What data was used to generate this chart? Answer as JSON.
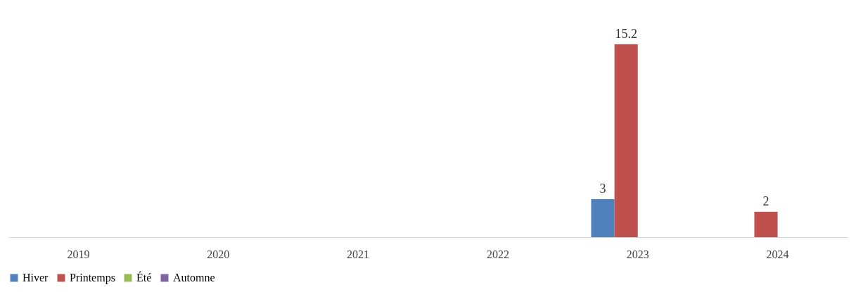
{
  "chart_data": {
    "type": "bar",
    "categories": [
      "2019",
      "2020",
      "2021",
      "2022",
      "2023",
      "2024"
    ],
    "series": [
      {
        "name": "Hiver",
        "color": "#4f81bd",
        "values": [
          null,
          null,
          null,
          null,
          3,
          null
        ]
      },
      {
        "name": "Printemps",
        "color": "#c0504d",
        "values": [
          null,
          null,
          null,
          null,
          15.2,
          2
        ]
      },
      {
        "name": "Été",
        "color": "#9bbb59",
        "values": [
          null,
          null,
          null,
          null,
          null,
          null
        ]
      },
      {
        "name": "Automne",
        "color": "#8064a2",
        "values": [
          null,
          null,
          null,
          null,
          null,
          null
        ]
      }
    ],
    "data_labels": true,
    "legend": "bottom",
    "grid": false
  }
}
